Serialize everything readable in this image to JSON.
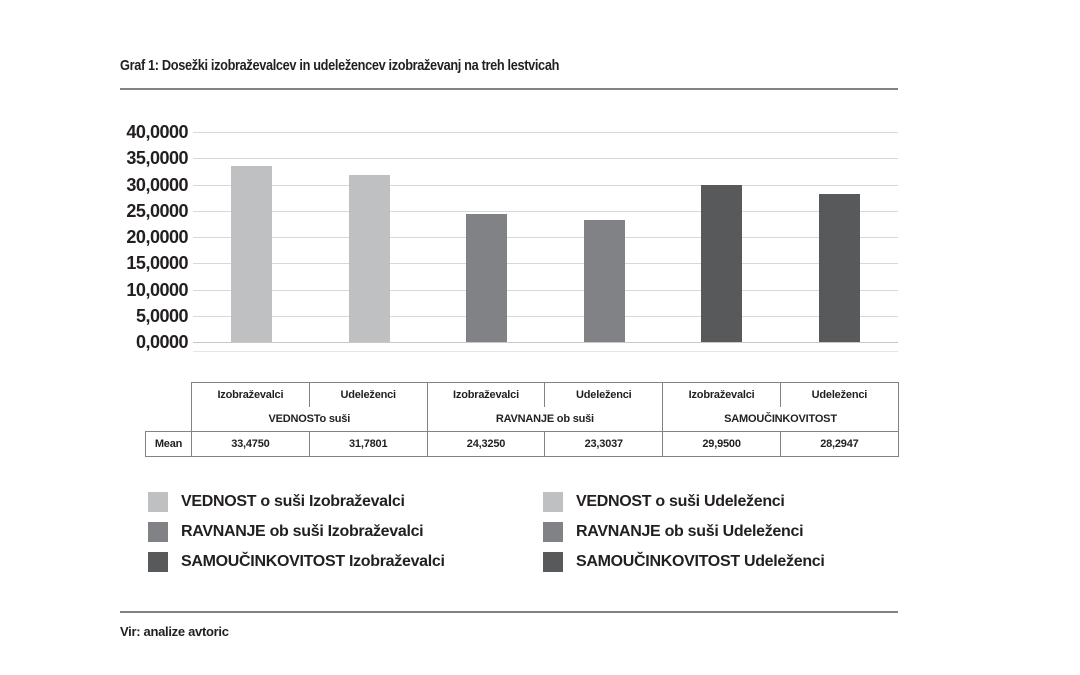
{
  "page": {
    "title": "Graf 1: Dosežki izobraževalcev in udeležencev izobraževanj na treh lestvicah",
    "source": "Vir: analize avtoric"
  },
  "colors": {
    "light_gray": "#bfc0c2",
    "medium_gray": "#808285",
    "dark_gray": "#58595b",
    "text": "#231f20",
    "rule": "#808285",
    "grid": "#d7d8d9"
  },
  "chart_data": {
    "type": "bar",
    "title": "Graf 1: Dosežki izobraževalcev in udeležencev izobraževanj na treh lestvicah",
    "statistic": "Mean",
    "categories": [
      "VEDNOST o suši Izobraževalci",
      "VEDNOST o suši Udeleženci",
      "RAVNANJE ob suši Izobraževalci",
      "RAVNANJE ob suši Udeleženci",
      "SAMOUČINKOVITOST Izobraževalci",
      "SAMOUČINKOVITOST Udeleženci"
    ],
    "values": [
      33.475,
      31.7801,
      24.325,
      23.3037,
      29.95,
      28.2947
    ],
    "value_labels": [
      "33,4750",
      "31,7801",
      "24,3250",
      "23,3037",
      "29,9500",
      "28,2947"
    ],
    "bar_colors": [
      "#bfc0c2",
      "#bfc0c2",
      "#808285",
      "#808285",
      "#58595b",
      "#58595b"
    ],
    "xlabel": "",
    "ylabel": "",
    "ylim": [
      0,
      40
    ],
    "ytick_step": 5,
    "ytick_labels": [
      "40,0000",
      "35,0000",
      "30,0000",
      "25,0000",
      "20,0000",
      "15,0000",
      "10,0000",
      "5,0000",
      "0,0000"
    ],
    "grid": true,
    "legend_position": "bottom"
  },
  "table": {
    "row_label": "Mean",
    "column_headers": [
      "Izobraževalci",
      "Udeleženci",
      "Izobraževalci",
      "Udeleženci",
      "Izobraževalci",
      "Udeleženci"
    ],
    "group_headers": [
      "VEDNOSTo suši",
      "RAVNANJE ob suši",
      "SAMOUČINKOVITOST"
    ],
    "values": [
      "33,4750",
      "31,7801",
      "24,3250",
      "23,3037",
      "29,9500",
      "28,2947"
    ]
  },
  "legend": {
    "columns": [
      {
        "items": [
          {
            "label": "VEDNOST o suši Izobraževalci",
            "color": "#bfc0c2"
          },
          {
            "label": "RAVNANJE ob suši Izobraževalci",
            "color": "#808285"
          },
          {
            "label": "SAMOUČINKOVITOST Izobraževalci",
            "color": "#58595b"
          }
        ]
      },
      {
        "items": [
          {
            "label": "VEDNOST o suši Udeleženci",
            "color": "#bfc0c2"
          },
          {
            "label": "RAVNANJE ob suši Udeleženci",
            "color": "#808285"
          },
          {
            "label": "SAMOUČINKOVITOST Udeleženci",
            "color": "#58595b"
          }
        ]
      }
    ]
  }
}
